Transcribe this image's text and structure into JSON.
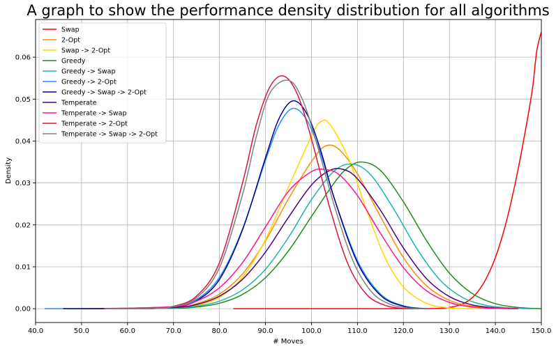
{
  "chart_data": {
    "type": "line",
    "title": "A graph to show the performance density distribution for all algorithms",
    "xlabel": "# Moves",
    "ylabel": "Density",
    "xlim": [
      40.0,
      150.0
    ],
    "ylim": [
      -0.0033,
      0.069
    ],
    "x_ticks": [
      "40.0",
      "50.0",
      "60.0",
      "70.0",
      "80.0",
      "90.0",
      "100.0",
      "110.0",
      "120.0",
      "130.0",
      "140.0",
      "150.0"
    ],
    "x_tick_values": [
      40,
      50,
      60,
      70,
      80,
      90,
      100,
      110,
      120,
      130,
      140,
      150
    ],
    "y_ticks": [
      "0.00",
      "0.01",
      "0.02",
      "0.03",
      "0.04",
      "0.05",
      "0.06"
    ],
    "y_tick_values": [
      0.0,
      0.01,
      0.02,
      0.03,
      0.04,
      0.05,
      0.06
    ],
    "grid": true,
    "legend_position": "top-left",
    "series": [
      {
        "name": "Swap",
        "color": "#ff0000",
        "x": [
          83,
          90,
          100,
          110,
          120,
          125,
          128,
          130,
          132,
          134,
          136,
          138,
          140,
          142,
          144,
          146,
          148,
          149,
          150
        ],
        "y": [
          0.0,
          0.0,
          0.0,
          0.0,
          0.0,
          0.0,
          0.0001,
          0.0003,
          0.0008,
          0.0018,
          0.0038,
          0.0072,
          0.0122,
          0.0192,
          0.0283,
          0.0393,
          0.052,
          0.0615,
          0.066
        ]
      },
      {
        "name": "2-Opt",
        "color": "#ff8c00",
        "x": [
          50,
          70,
          75,
          80,
          85,
          90,
          95,
          100,
          103,
          106,
          110,
          115,
          120,
          125,
          130,
          135,
          140,
          145
        ],
        "y": [
          0.0,
          0.0004,
          0.0012,
          0.0035,
          0.0083,
          0.0162,
          0.0262,
          0.0351,
          0.0388,
          0.038,
          0.0322,
          0.022,
          0.0122,
          0.0055,
          0.002,
          0.0006,
          0.0001,
          0.0
        ]
      },
      {
        "name": "Swap -> 2-Opt",
        "color": "#ffd700",
        "x": [
          55,
          70,
          75,
          80,
          85,
          90,
          95,
          100,
          102,
          104,
          108,
          112,
          116,
          120,
          125,
          130,
          135,
          140
        ],
        "y": [
          0.0,
          0.0002,
          0.0008,
          0.0027,
          0.0075,
          0.0165,
          0.029,
          0.0412,
          0.0446,
          0.044,
          0.036,
          0.0235,
          0.0122,
          0.0052,
          0.0013,
          0.0002,
          0.0,
          0.0
        ]
      },
      {
        "name": "Greedy",
        "color": "#228b22",
        "x": [
          55,
          70,
          75,
          80,
          85,
          90,
          95,
          100,
          105,
          108,
          111,
          115,
          120,
          125,
          130,
          135,
          140,
          145,
          150
        ],
        "y": [
          0.0,
          0.0001,
          0.0004,
          0.0013,
          0.0034,
          0.0074,
          0.0138,
          0.022,
          0.0301,
          0.0337,
          0.035,
          0.033,
          0.0255,
          0.0163,
          0.0085,
          0.0036,
          0.0012,
          0.0003,
          0.0
        ]
      },
      {
        "name": "Greedy -> Swap",
        "color": "#20b2aa",
        "x": [
          55,
          70,
          75,
          80,
          85,
          90,
          95,
          100,
          105,
          109,
          113,
          118,
          123,
          128,
          133,
          138,
          143,
          148
        ],
        "y": [
          0.0,
          0.0002,
          0.0006,
          0.0018,
          0.0045,
          0.0094,
          0.017,
          0.026,
          0.0329,
          0.0345,
          0.0318,
          0.0236,
          0.0142,
          0.0068,
          0.0026,
          0.0008,
          0.0002,
          0.0
        ]
      },
      {
        "name": "Greedy -> 2-Opt",
        "color": "#1e90ff",
        "x": [
          42,
          60,
          70,
          75,
          80,
          85,
          90,
          93,
          96,
          99,
          102,
          105,
          110,
          115,
          120,
          125
        ],
        "y": [
          0.0,
          0.0,
          0.0005,
          0.0022,
          0.0075,
          0.019,
          0.0354,
          0.044,
          0.0478,
          0.045,
          0.037,
          0.0262,
          0.0115,
          0.0035,
          0.0007,
          0.0
        ]
      },
      {
        "name": "Greedy -> Swap -> 2-Opt",
        "color": "#00008b",
        "x": [
          46,
          60,
          70,
          75,
          80,
          85,
          90,
          93,
          96,
          99,
          102,
          105,
          110,
          115,
          120,
          125
        ],
        "y": [
          0.0,
          0.0,
          0.0004,
          0.0019,
          0.007,
          0.0188,
          0.036,
          0.0455,
          0.0496,
          0.0465,
          0.0378,
          0.0262,
          0.011,
          0.0032,
          0.0006,
          0.0
        ]
      },
      {
        "name": "Temperate",
        "color": "#4b0082",
        "x": [
          55,
          70,
          75,
          80,
          85,
          90,
          95,
          100,
          104,
          107,
          110,
          115,
          120,
          125,
          130,
          135,
          140,
          145
        ],
        "y": [
          0.0,
          0.0003,
          0.001,
          0.003,
          0.007,
          0.0135,
          0.0218,
          0.0295,
          0.033,
          0.0332,
          0.031,
          0.0235,
          0.0145,
          0.0072,
          0.0029,
          0.0009,
          0.0002,
          0.0
        ]
      },
      {
        "name": "Temperate -> Swap",
        "color": "#ff1493",
        "x": [
          55,
          70,
          75,
          80,
          85,
          90,
          95,
          100,
          103,
          106,
          110,
          115,
          120,
          125,
          130,
          135,
          140,
          145
        ],
        "y": [
          0.0,
          0.0005,
          0.0018,
          0.005,
          0.011,
          0.0195,
          0.028,
          0.0327,
          0.0332,
          0.032,
          0.027,
          0.018,
          0.0098,
          0.0043,
          0.0015,
          0.0004,
          0.0001,
          0.0
        ]
      },
      {
        "name": "Temperate -> 2-Opt",
        "color": "#dc143c",
        "x": [
          55,
          65,
          70,
          75,
          80,
          85,
          88,
          91,
          94,
          97,
          100,
          104,
          108,
          112,
          116,
          120
        ],
        "y": [
          0.0,
          0.0,
          0.0006,
          0.003,
          0.011,
          0.03,
          0.0438,
          0.053,
          0.0555,
          0.051,
          0.0405,
          0.024,
          0.0105,
          0.0034,
          0.0008,
          0.0
        ]
      },
      {
        "name": "Temperate -> Swap -> 2-Opt",
        "color": "#808080",
        "x": [
          55,
          65,
          70,
          75,
          80,
          85,
          88,
          91,
          95,
          98,
          101,
          105,
          109,
          113,
          117,
          121,
          125
        ],
        "y": [
          0.0,
          0.0,
          0.0005,
          0.0026,
          0.0098,
          0.0272,
          0.041,
          0.0515,
          0.0545,
          0.05,
          0.04,
          0.0245,
          0.0115,
          0.0041,
          0.0011,
          0.0002,
          0.0
        ]
      }
    ]
  }
}
